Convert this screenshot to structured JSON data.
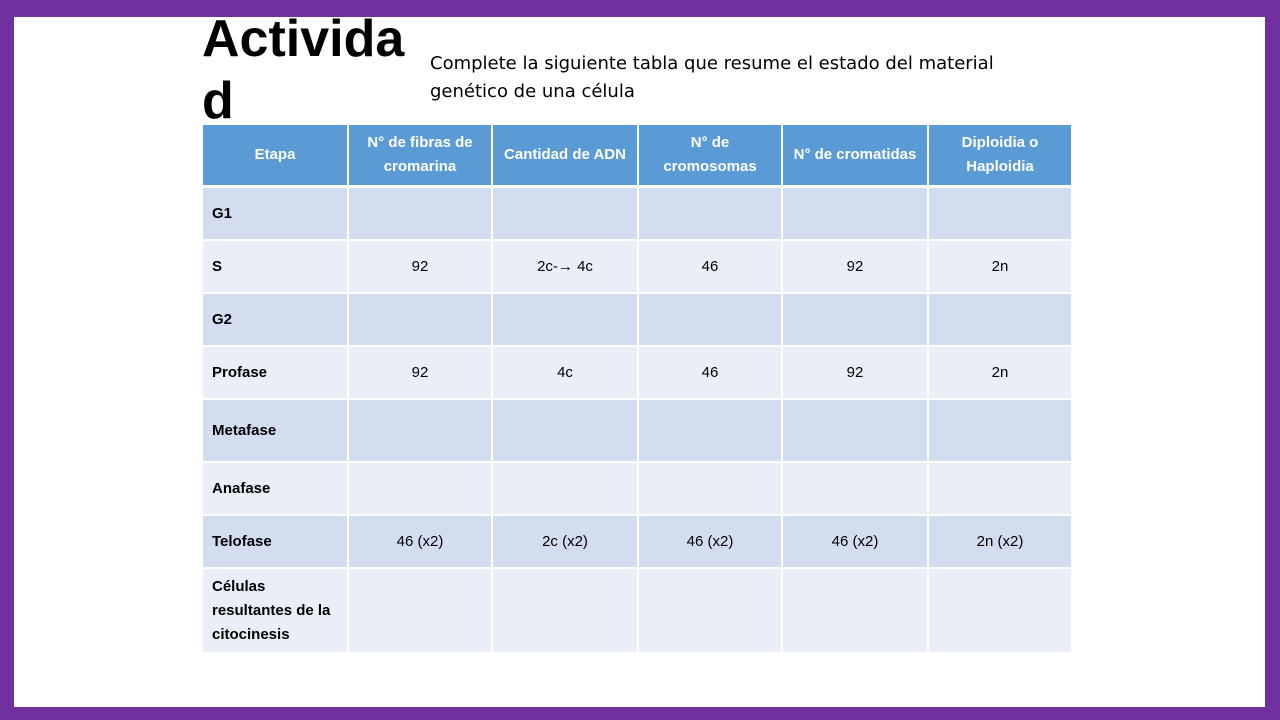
{
  "slide": {
    "title": "Actividad",
    "instruction": "Complete la siguiente tabla que resume el estado del material genético de una célula"
  },
  "table": {
    "headers": [
      "Etapa",
      "N° de fibras de cromarina",
      "Cantidad de ADN",
      "N° de cromosomas",
      "N° de cromatidas",
      "Diploidia o Haploidia"
    ],
    "rows": [
      {
        "stage": "G1",
        "cells": [
          "",
          "",
          "",
          "",
          ""
        ]
      },
      {
        "stage": "S",
        "cells": [
          "92",
          "2c-→ 4c",
          "46",
          "92",
          "2n"
        ]
      },
      {
        "stage": "G2",
        "cells": [
          "",
          "",
          "",
          "",
          ""
        ]
      },
      {
        "stage": "Profase",
        "cells": [
          "92",
          "4c",
          "46",
          "92",
          "2n"
        ]
      },
      {
        "stage": "Metafase",
        "cells": [
          "",
          "",
          "",
          "",
          ""
        ]
      },
      {
        "stage": "Anafase",
        "cells": [
          "",
          "",
          "",
          "",
          ""
        ]
      },
      {
        "stage": "Telofase",
        "cells": [
          "46 (x2)",
          "2c (x2)",
          "46 (x2)",
          "46 (x2)",
          "2n (x2)"
        ]
      },
      {
        "stage": "Células resultantes de la citocinesis",
        "cells": [
          "",
          "",
          "",
          "",
          ""
        ]
      }
    ]
  },
  "colors": {
    "border": "#7030a0",
    "header": "#5b9bd5",
    "row_dark": "#d2deef",
    "row_light": "#eaeff7"
  }
}
